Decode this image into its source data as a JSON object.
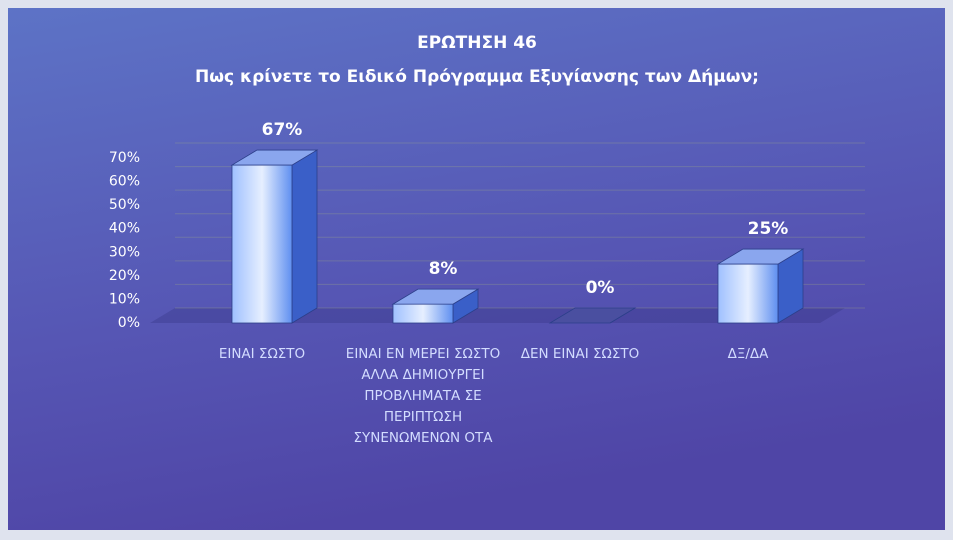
{
  "chart_data": {
    "type": "bar3d",
    "title": "ΕΡΩΤΗΣΗ 46",
    "subtitle": "Πως κρίνετε το Ειδικό Πρόγραμμα Εξυγίανσης των Δήμων;",
    "categories": [
      "ΕΙΝΑΙ ΣΩΣΤΟ",
      "ΕΙΝΑΙ ΕΝ ΜΕΡΕΙ ΣΩΣΤΟ ΑΛΛΑ ΔΗΜΙΟΥΡΓΕΙ ΠΡΟΒΛΗΜΑΤΑ ΣΕ ΠΕΡΙΠΤΩΣΗ ΣΥΝΕΝΩΜΕΝΩΝ ΟΤΑ",
      "ΔΕΝ ΕΙΝΑΙ ΣΩΣΤΟ",
      "ΔΞ/ΔΑ"
    ],
    "values": [
      67,
      8,
      0,
      25
    ],
    "value_labels": [
      "67%",
      "8%",
      "0%",
      "25%"
    ],
    "color": "#4a7be8",
    "ylim": [
      0,
      70
    ],
    "yticks": [
      {
        "value": 0,
        "label": "0%"
      },
      {
        "value": 10,
        "label": "10%"
      },
      {
        "value": 20,
        "label": "20%"
      },
      {
        "value": 30,
        "label": "30%"
      },
      {
        "value": 40,
        "label": "40%"
      },
      {
        "value": 50,
        "label": "50%"
      },
      {
        "value": 60,
        "label": "60%"
      },
      {
        "value": 70,
        "label": "70%"
      }
    ],
    "grid": true
  }
}
